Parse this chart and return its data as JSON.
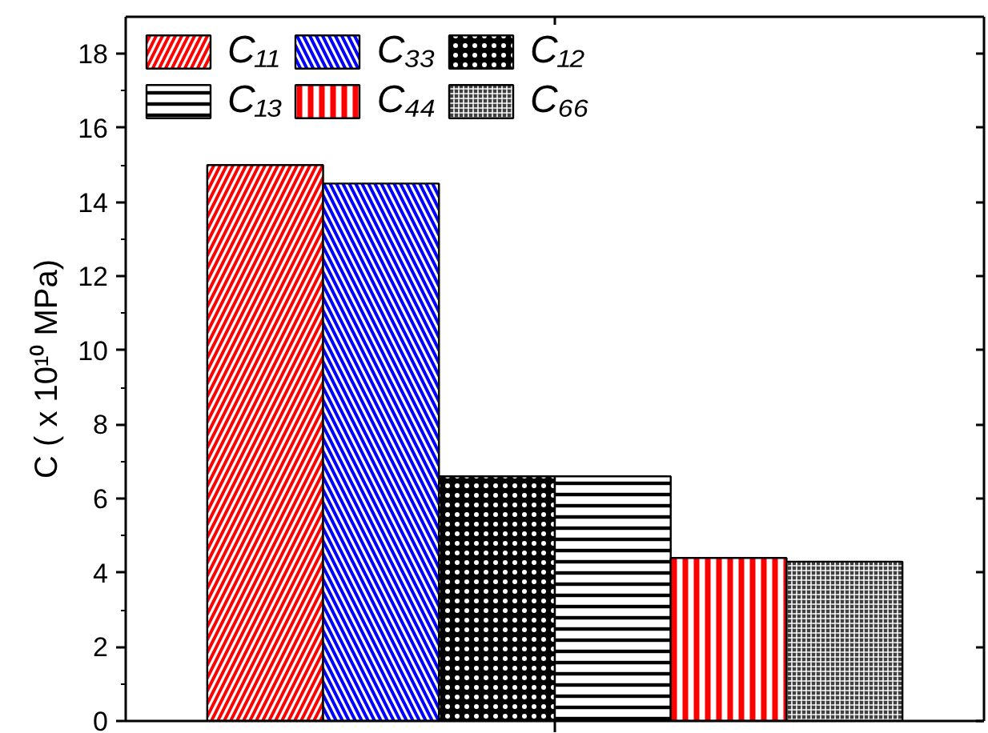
{
  "chart_data": {
    "type": "bar",
    "ylabel": "C ( x 10¹⁰ MPa)",
    "categories": [
      null
    ],
    "series": [
      {
        "name": "C₁₁",
        "color": "#ff0000",
        "values": [
          15.0
        ]
      },
      {
        "name": "C₃₃",
        "color": "#0000ff",
        "values": [
          14.5
        ]
      },
      {
        "name": "C₁₂",
        "color": "#000000",
        "values": [
          6.6
        ]
      },
      {
        "name": "C₁₃",
        "color": "#000000",
        "values": [
          6.6
        ]
      },
      {
        "name": "C₄₄",
        "color": "#ff0000",
        "values": [
          4.4
        ]
      },
      {
        "name": "C₆₆",
        "color": "#404040",
        "values": [
          4.3
        ]
      }
    ],
    "ylim": [
      0,
      19
    ],
    "yticks": [
      0,
      {
        "value": 1,
        "label": null
      },
      2,
      {
        "value": 3,
        "label": null
      },
      4,
      {
        "value": 5,
        "label": null
      },
      6,
      {
        "value": 7,
        "label": null
      },
      8,
      {
        "value": 9,
        "label": null
      },
      10,
      {
        "value": 11,
        "label": null
      },
      12,
      {
        "value": 13,
        "label": null
      },
      14,
      {
        "value": 15,
        "label": null
      },
      16,
      {
        "value": 17,
        "label": null
      },
      18
    ],
    "legend": "top left",
    "tick_labels": "y"
  }
}
